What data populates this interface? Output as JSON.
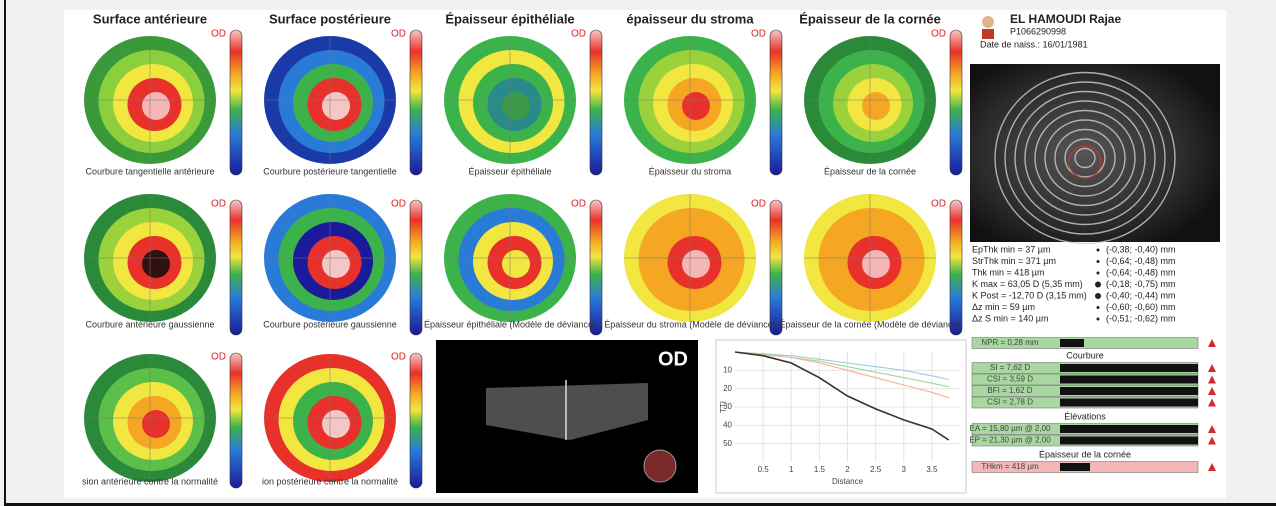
{
  "columns": [
    {
      "title": "Surface antérieure",
      "maps": [
        {
          "label": "OD",
          "caption": "Courbure tangentielle antérieure"
        },
        {
          "label": "OD",
          "caption": "Courbure antérieure gaussienne"
        },
        {
          "label": "OD",
          "caption": "sion antérieure contre la normalité"
        }
      ]
    },
    {
      "title": "Surface postérieure",
      "maps": [
        {
          "label": "OD",
          "caption": "Courbure postérieure tangentielle"
        },
        {
          "label": "OD",
          "caption": "Courbure postérieure gaussienne"
        },
        {
          "label": "OD",
          "caption": "ion postérieure contre la normalité"
        }
      ]
    },
    {
      "title": "Épaisseur épithéliale",
      "maps": [
        {
          "label": "OD",
          "caption": "Épaisseur épithéliale"
        },
        {
          "label": "OD",
          "caption": "Épaisseur épithéliale (Modèle de déviance)"
        }
      ]
    },
    {
      "title": "épaisseur du stroma",
      "maps": [
        {
          "label": "OD",
          "caption": "Épaisseur du stroma"
        },
        {
          "label": "OD",
          "caption": "Épaisseur du stroma (Modèle de déviance)"
        }
      ]
    },
    {
      "title": "Épaisseur de la cornée",
      "maps": [
        {
          "label": "OD",
          "caption": "Épaisseur de la cornée"
        },
        {
          "label": "OD",
          "caption": "Épaisseur de la cornée (Modèle de déviance)"
        }
      ]
    }
  ],
  "oct": {
    "label": "OD"
  },
  "chart_data": {
    "type": "line",
    "xlabel": "Distance",
    "ylabel": "TTI",
    "xlim": [
      0,
      4
    ],
    "xticks": [
      0.5,
      1,
      1.5,
      2,
      2.5,
      3,
      3.5
    ],
    "ylim": [
      0,
      60
    ],
    "yticks": [
      10,
      20,
      30,
      40,
      50
    ],
    "y_inverted": true,
    "x": [
      0,
      0.5,
      1,
      1.5,
      2,
      2.5,
      3,
      3.5,
      3.8
    ],
    "series": [
      {
        "color": "#9ecae1",
        "values": [
          0,
          1,
          2,
          4,
          6,
          8,
          10,
          13,
          15
        ]
      },
      {
        "color": "#a1d99b",
        "values": [
          0,
          1,
          3,
          5,
          8,
          11,
          14,
          17,
          19
        ]
      },
      {
        "color": "#fcae91",
        "values": [
          0,
          1.5,
          3,
          6,
          10,
          14,
          18,
          22,
          25
        ]
      },
      {
        "color": "#333333",
        "values": [
          0,
          2,
          6,
          14,
          24,
          31,
          37,
          42,
          48
        ]
      }
    ]
  },
  "patient": {
    "name": "EL HAMOUDI Rajae",
    "id": "P1066290998",
    "birth": "Date de naiss.: 16/01/1981"
  },
  "measurements": [
    [
      "EpThk min = 37 µm",
      "(-0,38; -0,40) mm"
    ],
    [
      "StrThk min = 371 µm",
      "(-0,64; -0,48) mm"
    ],
    [
      "Thk min = 418 µm",
      "(-0,64; -0,48) mm"
    ],
    [
      "K max = 63,05 D (5,35 mm)",
      "(-0,18; -0,75) mm"
    ],
    [
      "K Post = -12,70 D (3,15 mm)",
      "(-0,40; -0,44) mm"
    ],
    [
      "Δz min = 59 µm",
      "(-0,60; -0,60) mm"
    ],
    [
      "Δz S min = 140 µm",
      "(-0,51; -0,62) mm"
    ]
  ],
  "indicators": {
    "npr": "NPR = 0,28 mm",
    "sections": [
      {
        "title": "Courbure",
        "bars": [
          "SI = 7,62 D",
          "CSI = 3,59 D",
          "BFI = 1,62 D",
          "CSI = 2,78 D"
        ]
      },
      {
        "title": "Élévations",
        "bars": [
          "EA = 15,80 µm @ 2,00",
          "EP = 21,30 µm @ 2,00"
        ]
      },
      {
        "title": "Épaisseur de la cornée",
        "bars": [
          "THkm = 418 µm"
        ]
      }
    ]
  }
}
